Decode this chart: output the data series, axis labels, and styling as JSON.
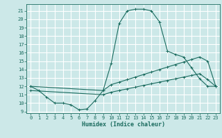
{
  "xlabel": "Humidex (Indice chaleur)",
  "bg_color": "#cce8e8",
  "grid_color": "#ffffff",
  "line_color": "#1a6b5e",
  "xlim": [
    -0.5,
    23.5
  ],
  "ylim": [
    8.8,
    21.8
  ],
  "xticks": [
    0,
    1,
    2,
    3,
    4,
    5,
    6,
    7,
    8,
    9,
    10,
    11,
    12,
    13,
    14,
    15,
    16,
    17,
    18,
    19,
    20,
    21,
    22,
    23
  ],
  "yticks": [
    9,
    10,
    11,
    12,
    13,
    14,
    15,
    16,
    17,
    18,
    19,
    20,
    21
  ],
  "line1_x": [
    0,
    1,
    2,
    3,
    4,
    5,
    6,
    7,
    8,
    9,
    10,
    11,
    12,
    13,
    14,
    15,
    16,
    17,
    18,
    19,
    20,
    21,
    22,
    23
  ],
  "line1_y": [
    12.0,
    11.5,
    10.7,
    10.0,
    10.0,
    9.8,
    9.2,
    9.3,
    10.3,
    11.5,
    14.7,
    19.5,
    21.0,
    21.2,
    21.2,
    21.0,
    19.7,
    16.2,
    15.8,
    15.5,
    14.2,
    12.9,
    12.0,
    12.0
  ],
  "line2_x": [
    0,
    9,
    10,
    11,
    12,
    13,
    14,
    15,
    16,
    17,
    18,
    19,
    20,
    21,
    22,
    23
  ],
  "line2_y": [
    12.0,
    11.5,
    12.2,
    12.5,
    12.8,
    13.1,
    13.4,
    13.7,
    14.0,
    14.3,
    14.6,
    14.9,
    15.2,
    15.5,
    15.0,
    12.0
  ],
  "line3_x": [
    0,
    9,
    10,
    11,
    12,
    13,
    14,
    15,
    16,
    17,
    18,
    19,
    20,
    21,
    22,
    23
  ],
  "line3_y": [
    11.5,
    11.0,
    11.3,
    11.5,
    11.7,
    11.9,
    12.1,
    12.3,
    12.5,
    12.7,
    12.9,
    13.1,
    13.3,
    13.5,
    12.8,
    12.0
  ],
  "tick_fontsize": 5,
  "xlabel_fontsize": 6
}
